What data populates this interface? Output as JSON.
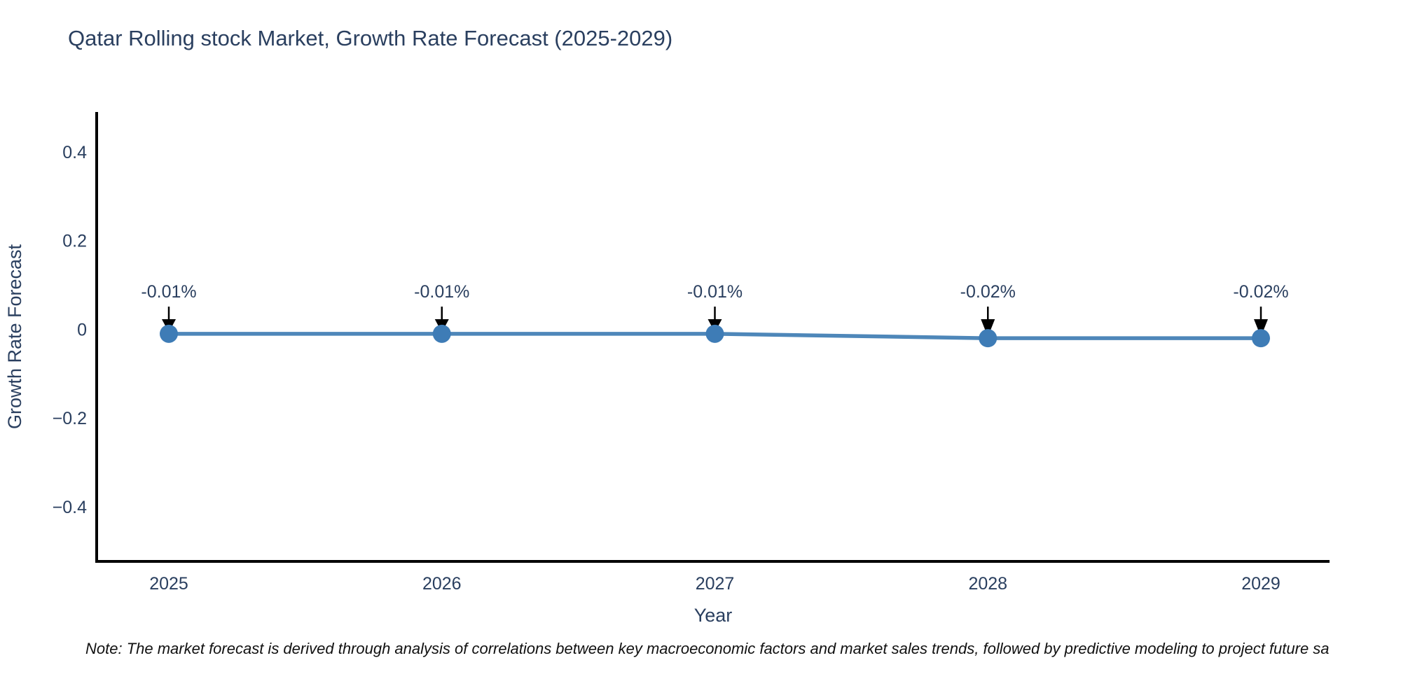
{
  "chart_data": {
    "type": "line",
    "title": "Qatar Rolling stock Market, Growth Rate Forecast (2025-2029)",
    "xlabel": "Year",
    "ylabel": "Growth Rate Forecast",
    "x": [
      2025,
      2026,
      2027,
      2028,
      2029
    ],
    "x_tick_labels": [
      "2025",
      "2026",
      "2027",
      "2028",
      "2029"
    ],
    "series": [
      {
        "name": "Growth Rate Forecast",
        "values": [
          -0.01,
          -0.01,
          -0.01,
          -0.02,
          -0.02
        ],
        "point_labels": [
          "-0.01%",
          "-0.01%",
          "-0.01%",
          "-0.02%",
          "-0.02%"
        ]
      }
    ],
    "y_ticks": [
      0.4,
      0.2,
      0,
      -0.2,
      -0.4
    ],
    "y_tick_labels": [
      "0.4",
      "0.2",
      "0",
      "−0.2",
      "−0.4"
    ],
    "ylim": [
      -0.52,
      0.49
    ],
    "grid": false,
    "legend_position": "none",
    "colors": {
      "line": "#4e87b9",
      "marker": "#3e7cb6",
      "axis": "#000000",
      "tick_text": "#2a3f5f",
      "annotation_text": "#2a3f5f",
      "annotation_arrow": "#000000",
      "title_text": "#2a3f5f"
    }
  },
  "note": "Note: The market forecast is derived through analysis of correlations between key macroeconomic factors and market sales trends, followed by predictive modeling to project future sa"
}
